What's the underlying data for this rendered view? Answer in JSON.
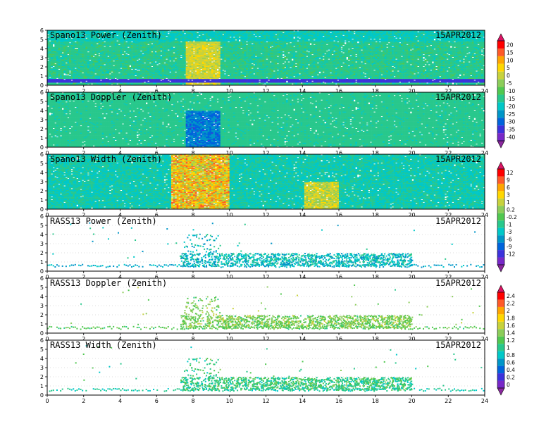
{
  "chart_data": [
    {
      "type": "heatmap",
      "title": "Spano13 Power (Zenith)",
      "date": "15APR2012",
      "x_ticks": [
        "0",
        "2",
        "4",
        "6",
        "8",
        "10",
        "12",
        "14",
        "16",
        "18",
        "20",
        "22",
        "24"
      ],
      "y_ticks": [
        "0",
        "1",
        "2",
        "3",
        "4",
        "5",
        "6"
      ],
      "xlim": [
        0,
        24
      ],
      "ylim": [
        0,
        6
      ],
      "colorbar": "A",
      "description_values": {
        "background_level": -18,
        "enhanced_hours": [
          7.5,
          9.5
        ],
        "low_band_height_km": [
          0.3,
          0.7
        ],
        "low_band_level": -33
      }
    },
    {
      "type": "heatmap",
      "title": "Spano13 Doppler (Zenith)",
      "date": "15APR2012",
      "x_ticks": [
        "0",
        "2",
        "4",
        "6",
        "8",
        "10",
        "12",
        "14",
        "16",
        "18",
        "20",
        "22",
        "24"
      ],
      "y_ticks": [
        "0",
        "1",
        "2",
        "3",
        "4",
        "5",
        "6"
      ],
      "xlim": [
        0,
        24
      ],
      "ylim": [
        0,
        6
      ],
      "colorbar": "A",
      "description_values": {
        "background_level": -18,
        "min_region_hours": [
          7.5,
          9.5
        ],
        "min_region_level": -33
      }
    },
    {
      "type": "heatmap",
      "title": "Spano13 Width (Zenith)",
      "date": "15APR2012",
      "x_ticks": [
        "0",
        "2",
        "4",
        "6",
        "8",
        "10",
        "12",
        "14",
        "16",
        "18",
        "20",
        "22",
        "24"
      ],
      "y_ticks": [
        "0",
        "1",
        "2",
        "3",
        "4",
        "5",
        "6"
      ],
      "xlim": [
        0,
        24
      ],
      "ylim": [
        0,
        6
      ],
      "colorbar": "B",
      "description_values": {
        "background_level": -1,
        "enhanced_hours": [
          6.8,
          10
        ],
        "max_level": 12
      }
    },
    {
      "type": "scatter",
      "title": "RASS13 Power (Zenith)",
      "date": "15APR2012",
      "x_ticks": [
        "0",
        "2",
        "4",
        "6",
        "8",
        "10",
        "12",
        "14",
        "16",
        "18",
        "20",
        "22",
        "24"
      ],
      "y_ticks": [
        "0",
        "1",
        "2",
        "3",
        "4",
        "5",
        "6"
      ],
      "xlim": [
        0,
        24
      ],
      "ylim": [
        0,
        6
      ],
      "colorbar": "B",
      "description_values": {
        "data_hours": [
          7.3,
          20
        ],
        "typical_height_km": [
          0.6,
          2.0
        ],
        "typical_level": -6
      }
    },
    {
      "type": "scatter",
      "title": "RASS13 Doppler (Zenith)",
      "date": "15APR2012",
      "x_ticks": [
        "0",
        "2",
        "4",
        "6",
        "8",
        "10",
        "12",
        "14",
        "16",
        "18",
        "20",
        "22",
        "24"
      ],
      "y_ticks": [
        "0",
        "1",
        "2",
        "3",
        "4",
        "5",
        "6"
      ],
      "xlim": [
        0,
        24
      ],
      "ylim": [
        0,
        6
      ],
      "colorbar": "C",
      "description_values": {
        "data_hours": [
          7.3,
          20
        ],
        "typical_height_km": [
          0.6,
          2.0
        ],
        "typical_level": 1.2
      }
    },
    {
      "type": "scatter",
      "title": "RASS13 Width (Zenith)",
      "date": "15APR2012",
      "x_ticks": [
        "0",
        "2",
        "4",
        "6",
        "8",
        "10",
        "12",
        "14",
        "16",
        "18",
        "20",
        "22",
        "24"
      ],
      "y_ticks": [
        "0",
        "1",
        "2",
        "3",
        "4",
        "5",
        "6"
      ],
      "xlim": [
        0,
        24
      ],
      "ylim": [
        0,
        6
      ],
      "colorbar": "C",
      "description_values": {
        "data_hours": [
          7.3,
          20
        ],
        "typical_height_km": [
          0.6,
          2.0
        ],
        "typical_level": 1.0
      }
    }
  ],
  "colorbars": {
    "A": {
      "labels": [
        "20",
        "15",
        "10",
        "5",
        "0",
        "-5",
        "-10",
        "-15",
        "-20",
        "-25",
        "-30",
        "-35",
        "-40"
      ],
      "colors": [
        "#ff0000",
        "#ff5a28",
        "#ffa500",
        "#ffd700",
        "#c8d23c",
        "#8ccd5a",
        "#50c850",
        "#28c88c",
        "#00c8c8",
        "#0096c8",
        "#0064dc",
        "#3c32dc",
        "#7828c8"
      ],
      "top_color": "#dc1464",
      "bottom_color": "#8c28a0"
    },
    "B": {
      "labels": [
        "12",
        "9",
        "6",
        "3",
        "1",
        "0.2",
        "-0.2",
        "-1",
        "-3",
        "-6",
        "-9",
        "-12"
      ],
      "colors": [
        "#ff0000",
        "#ff5a28",
        "#ffa500",
        "#ffd700",
        "#c8d23c",
        "#8ccd5a",
        "#50c850",
        "#28c88c",
        "#00c8c8",
        "#0096c8",
        "#0064dc",
        "#3c32dc",
        "#7828c8"
      ],
      "top_color": "#dc1464",
      "bottom_color": "#8c28a0"
    },
    "C": {
      "labels": [
        "2.4",
        "2.2",
        "2",
        "1.8",
        "1.6",
        "1.4",
        "1.2",
        "1",
        "0.8",
        "0.6",
        "0.4",
        "0.2",
        "0"
      ],
      "colors": [
        "#ff0000",
        "#ff5a28",
        "#ffa500",
        "#ffd700",
        "#c8d23c",
        "#8ccd5a",
        "#50c850",
        "#28c88c",
        "#00c8c8",
        "#0096c8",
        "#0064dc",
        "#3c32dc",
        "#7828c8"
      ],
      "top_color": "#dc1464",
      "bottom_color": "#8c28a0"
    }
  }
}
